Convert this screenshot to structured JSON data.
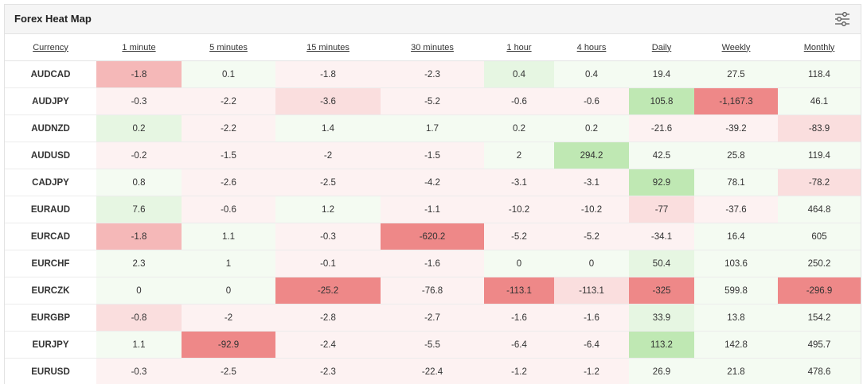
{
  "widget": {
    "title": "Forex Heat Map",
    "settings_icon": "sliders-icon"
  },
  "columns": [
    "Currency",
    "1 minute",
    "5 minutes",
    "15 minutes",
    "30 minutes",
    "1 hour",
    "4 hours",
    "Daily",
    "Weekly",
    "Monthly"
  ],
  "colors": {
    "strong_red": "#ee8888",
    "red": "#f5b8b8",
    "light_red": "#fadede",
    "pale_red": "#fdf2f2",
    "strong_green": "#bfe8b3",
    "light_green": "#e6f6e2",
    "pale_green": "#f4fbf2"
  },
  "rows": [
    {
      "currency": "AUDCAD",
      "values": [
        "-1.8",
        "0.1",
        "-1.8",
        "-2.3",
        "0.4",
        "0.4",
        "19.4",
        "27.5",
        "118.4"
      ],
      "shades": [
        "red",
        "pale_green",
        "pale_red",
        "pale_red",
        "light_green",
        "pale_green",
        "pale_green",
        "pale_green",
        "pale_green"
      ]
    },
    {
      "currency": "AUDJPY",
      "values": [
        "-0.3",
        "-2.2",
        "-3.6",
        "-5.2",
        "-0.6",
        "-0.6",
        "105.8",
        "-1,167.3",
        "46.1"
      ],
      "shades": [
        "pale_red",
        "pale_red",
        "light_red",
        "pale_red",
        "pale_red",
        "pale_red",
        "strong_green",
        "strong_red",
        "pale_green"
      ]
    },
    {
      "currency": "AUDNZD",
      "values": [
        "0.2",
        "-2.2",
        "1.4",
        "1.7",
        "0.2",
        "0.2",
        "-21.6",
        "-39.2",
        "-83.9"
      ],
      "shades": [
        "light_green",
        "pale_red",
        "pale_green",
        "pale_green",
        "pale_green",
        "pale_green",
        "pale_red",
        "pale_red",
        "light_red"
      ]
    },
    {
      "currency": "AUDUSD",
      "values": [
        "-0.2",
        "-1.5",
        "-2",
        "-1.5",
        "2",
        "294.2",
        "42.5",
        "25.8",
        "119.4"
      ],
      "shades": [
        "pale_red",
        "pale_red",
        "pale_red",
        "pale_red",
        "pale_green",
        "strong_green",
        "pale_green",
        "pale_green",
        "pale_green"
      ]
    },
    {
      "currency": "CADJPY",
      "values": [
        "0.8",
        "-2.6",
        "-2.5",
        "-4.2",
        "-3.1",
        "-3.1",
        "92.9",
        "78.1",
        "-78.2"
      ],
      "shades": [
        "pale_green",
        "pale_red",
        "pale_red",
        "pale_red",
        "pale_red",
        "pale_red",
        "strong_green",
        "pale_green",
        "light_red"
      ]
    },
    {
      "currency": "EURAUD",
      "values": [
        "7.6",
        "-0.6",
        "1.2",
        "-1.1",
        "-10.2",
        "-10.2",
        "-77",
        "-37.6",
        "464.8"
      ],
      "shades": [
        "light_green",
        "pale_red",
        "pale_green",
        "pale_red",
        "pale_red",
        "pale_red",
        "light_red",
        "pale_red",
        "pale_green"
      ]
    },
    {
      "currency": "EURCAD",
      "values": [
        "-1.8",
        "1.1",
        "-0.3",
        "-620.2",
        "-5.2",
        "-5.2",
        "-34.1",
        "16.4",
        "605"
      ],
      "shades": [
        "red",
        "pale_green",
        "pale_red",
        "strong_red",
        "pale_red",
        "pale_red",
        "pale_red",
        "pale_green",
        "pale_green"
      ]
    },
    {
      "currency": "EURCHF",
      "values": [
        "2.3",
        "1",
        "-0.1",
        "-1.6",
        "0",
        "0",
        "50.4",
        "103.6",
        "250.2"
      ],
      "shades": [
        "pale_green",
        "pale_green",
        "pale_red",
        "pale_red",
        "pale_green",
        "pale_green",
        "light_green",
        "pale_green",
        "pale_green"
      ]
    },
    {
      "currency": "EURCZK",
      "values": [
        "0",
        "0",
        "-25.2",
        "-76.8",
        "-113.1",
        "-113.1",
        "-325",
        "599.8",
        "-296.9"
      ],
      "shades": [
        "pale_green",
        "pale_green",
        "strong_red",
        "pale_red",
        "strong_red",
        "light_red",
        "strong_red",
        "pale_green",
        "strong_red"
      ]
    },
    {
      "currency": "EURGBP",
      "values": [
        "-0.8",
        "-2",
        "-2.8",
        "-2.7",
        "-1.6",
        "-1.6",
        "33.9",
        "13.8",
        "154.2"
      ],
      "shades": [
        "light_red",
        "pale_red",
        "pale_red",
        "pale_red",
        "pale_red",
        "pale_red",
        "light_green",
        "pale_green",
        "pale_green"
      ]
    },
    {
      "currency": "EURJPY",
      "values": [
        "1.1",
        "-92.9",
        "-2.4",
        "-5.5",
        "-6.4",
        "-6.4",
        "113.2",
        "142.8",
        "495.7"
      ],
      "shades": [
        "pale_green",
        "strong_red",
        "pale_red",
        "pale_red",
        "pale_red",
        "pale_red",
        "strong_green",
        "pale_green",
        "pale_green"
      ]
    },
    {
      "currency": "EURUSD",
      "values": [
        "-0.3",
        "-2.5",
        "-2.3",
        "-22.4",
        "-1.2",
        "-1.2",
        "26.9",
        "21.8",
        "478.6"
      ],
      "shades": [
        "pale_red",
        "pale_red",
        "pale_red",
        "pale_red",
        "pale_red",
        "pale_red",
        "pale_green",
        "pale_green",
        "pale_green"
      ]
    }
  ]
}
